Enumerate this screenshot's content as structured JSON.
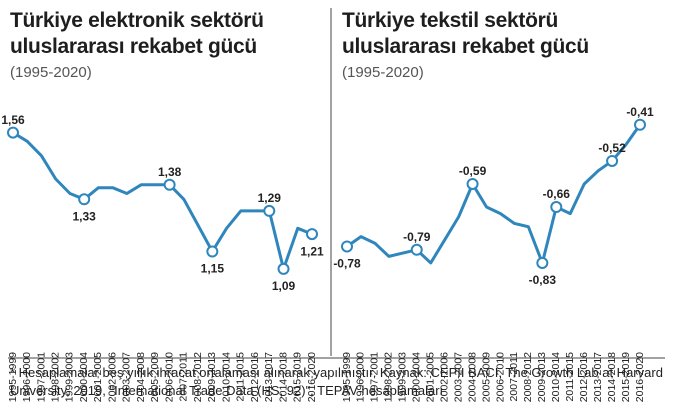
{
  "chart_data": [
    {
      "type": "line",
      "title": "Türkiye elektronik sektörü uluslararası rekabet gücü",
      "subtitle": "(1995-2020)",
      "categories": [
        "1995-1999",
        "1996-2000",
        "1997-2001",
        "1998-2002",
        "1999-2003",
        "2000-2004",
        "2001-2005",
        "2002-2006",
        "2003-2007",
        "2004-2008",
        "2005-2009",
        "2006-2010",
        "2007-2011",
        "2008-2012",
        "2009-2013",
        "2010-2014",
        "2011-2015",
        "2012-2016",
        "2013-2017",
        "2014-2018",
        "2015-2019",
        "2016-2020"
      ],
      "values": [
        1.56,
        1.53,
        1.48,
        1.4,
        1.35,
        1.33,
        1.37,
        1.37,
        1.35,
        1.38,
        1.38,
        1.38,
        1.33,
        1.24,
        1.15,
        1.23,
        1.29,
        1.29,
        1.29,
        1.09,
        1.23,
        1.21
      ],
      "value_labels": [
        "1,56",
        null,
        null,
        null,
        null,
        "1,33",
        null,
        null,
        null,
        null,
        null,
        "1,38",
        null,
        null,
        "1,15",
        null,
        null,
        null,
        "1,29",
        "1,09",
        null,
        "1,21"
      ],
      "color": "#2f86bd",
      "ylim": [
        1.0,
        1.6
      ]
    },
    {
      "type": "line",
      "title": "Türkiye tekstil sektörü uluslararası rekabet gücü",
      "subtitle": "(1995-2020)",
      "categories": [
        "1995-1999",
        "1996-2000",
        "1997-2001",
        "1998-2002",
        "1999-2003",
        "2000-2004",
        "2001-2005",
        "2002-2006",
        "2003-2007",
        "2004-2008",
        "2005-2009",
        "2006-2010",
        "2007-2011",
        "2008-2012",
        "2009-2013",
        "2010-2014",
        "2011-2015",
        "2012-2016",
        "2013-2017",
        "2014-2018",
        "2015-2019",
        "2016-2020"
      ],
      "values": [
        -0.78,
        -0.75,
        -0.77,
        -0.81,
        -0.8,
        -0.79,
        -0.83,
        -0.76,
        -0.69,
        -0.59,
        -0.66,
        -0.68,
        -0.71,
        -0.72,
        -0.83,
        -0.66,
        -0.68,
        -0.59,
        -0.55,
        -0.52,
        -0.47,
        -0.41
      ],
      "value_labels": [
        "-0,78",
        null,
        null,
        null,
        null,
        "-0,79",
        null,
        null,
        null,
        "-0,59",
        null,
        null,
        null,
        null,
        "-0,83",
        "-0,66",
        null,
        null,
        null,
        "-0,52",
        null,
        "-0,41"
      ],
      "color": "#2f86bd",
      "ylim": [
        -0.9,
        -0.35
      ]
    }
  ],
  "footnote": "* Hesaplamalar beş yıllık ihracat ortalaması alınarak yapılmıştır. Kaynak: CEPII BACI, The Growth Lab at Harvard University, 2019, \"International Trade Data (HS, 92)\", TEPAV hesaplamaları"
}
